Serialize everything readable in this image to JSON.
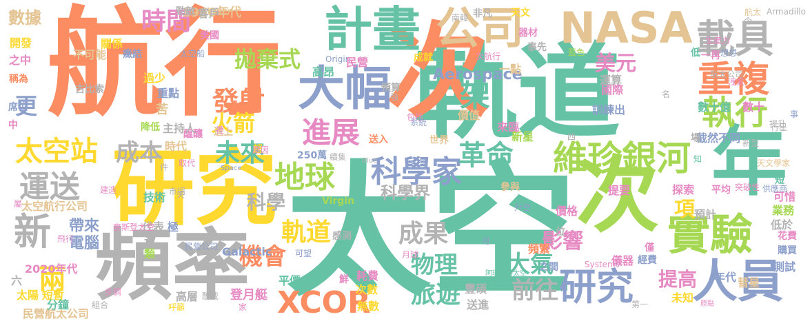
{
  "palette": {
    "orange": "#fc8d62",
    "teal": "#66c2a5",
    "blue": "#8da0cb",
    "pink": "#e78ac3",
    "green": "#a6d854",
    "yellow": "#ffd92f",
    "tan": "#e5c494",
    "gray": "#b3b3b3"
  },
  "words": [
    {
      "text": "太空",
      "color": "teal",
      "size": 1.0
    },
    {
      "text": "航行",
      "color": "orange",
      "size": 0.95
    },
    {
      "text": "軌道",
      "color": "teal",
      "size": 0.85
    },
    {
      "text": "次",
      "color": "orange",
      "size": 0.8
    },
    {
      "text": "研究",
      "color": "yellow",
      "size": 0.7
    },
    {
      "text": "頻率",
      "color": "gray",
      "size": 0.65
    },
    {
      "text": "年",
      "color": "teal",
      "size": 0.6
    },
    {
      "text": "次",
      "color": "green",
      "size": 0.6
    },
    {
      "text": "計畫",
      "color": "teal",
      "size": 0.45
    },
    {
      "text": "公司",
      "color": "tan",
      "size": 0.42
    },
    {
      "text": "NASA",
      "color": "tan",
      "size": 0.4
    },
    {
      "text": "載具",
      "color": "gray",
      "size": 0.38
    },
    {
      "text": "大幅",
      "color": "blue",
      "size": 0.42
    },
    {
      "text": "重複",
      "color": "orange",
      "size": 0.34
    },
    {
      "text": "執行",
      "color": "green",
      "size": 0.34
    },
    {
      "text": "實驗",
      "color": "green",
      "size": 0.38
    },
    {
      "text": "人員",
      "color": "blue",
      "size": 0.4
    },
    {
      "text": "研究",
      "color": "blue",
      "size": 0.36
    },
    {
      "text": "維珍銀河",
      "color": "green",
      "size": 0.36
    },
    {
      "text": "科學家",
      "color": "blue",
      "size": 0.3
    },
    {
      "text": "XCOR",
      "color": "orange",
      "size": 0.3
    },
    {
      "text": "新",
      "color": "gray",
      "size": 0.34
    },
    {
      "text": "太空站",
      "color": "yellow",
      "size": 0.3
    },
    {
      "text": "運送",
      "color": "gray",
      "size": 0.3
    },
    {
      "text": "時間",
      "color": "pink",
      "size": 0.26
    },
    {
      "text": "拋棄式",
      "color": "green",
      "size": 0.24
    },
    {
      "text": "發射",
      "color": "orange",
      "size": 0.28
    },
    {
      "text": "火箭",
      "color": "yellow",
      "size": 0.24
    },
    {
      "text": "進展",
      "color": "pink",
      "size": 0.3
    },
    {
      "text": "地球",
      "color": "green",
      "size": 0.3
    },
    {
      "text": "未來",
      "color": "teal",
      "size": 0.28
    },
    {
      "text": "成本",
      "color": "gray",
      "size": 0.26
    },
    {
      "text": "革命",
      "color": "teal",
      "size": 0.28
    },
    {
      "text": "架",
      "color": "teal",
      "size": 0.32
    },
    {
      "text": "美元",
      "color": "pink",
      "size": 0.22
    },
    {
      "text": "成果",
      "color": "gray",
      "size": 0.26
    },
    {
      "text": "軌道",
      "color": "yellow",
      "size": 0.26
    },
    {
      "text": "機會",
      "color": "orange",
      "size": 0.24
    },
    {
      "text": "物理",
      "color": "teal",
      "size": 0.24
    },
    {
      "text": "大氣",
      "color": "teal",
      "size": 0.24
    },
    {
      "text": "旅遊",
      "color": "teal",
      "size": 0.26
    },
    {
      "text": "前往",
      "color": "gray",
      "size": 0.24
    },
    {
      "text": "影響",
      "color": "pink",
      "size": 0.22
    },
    {
      "text": "提高",
      "color": "pink",
      "size": 0.22
    },
    {
      "text": "項",
      "color": "yellow",
      "size": 0.24
    },
    {
      "text": "兩",
      "color": "yellow",
      "size": 0.28
    },
    {
      "text": "科學",
      "color": "gray",
      "size": 0.22
    },
    {
      "text": "科學界",
      "color": "gray",
      "size": 0.2
    },
    {
      "text": "Aerospace",
      "color": "blue",
      "size": 0.16
    },
    {
      "text": "數據",
      "color": "tan",
      "size": 0.2
    },
    {
      "text": "更",
      "color": "blue",
      "size": 0.22
    },
    {
      "text": "帶來",
      "color": "blue",
      "size": 0.17
    },
    {
      "text": "電腦",
      "color": "blue",
      "size": 0.16
    },
    {
      "text": "1960年代",
      "color": "tan",
      "size": 0.14
    },
    {
      "text": "2020年代",
      "color": "pink",
      "size": 0.12
    },
    {
      "text": "太空航行公司",
      "color": "tan",
      "size": 0.12
    },
    {
      "text": "民營航太公司",
      "color": "tan",
      "size": 0.12
    },
    {
      "text": "Galactic",
      "color": "blue",
      "size": 0.12
    },
    {
      "text": "Virgin",
      "color": "green",
      "size": 0.12
    },
    {
      "text": "Systems",
      "color": "pink",
      "size": 0.09
    },
    {
      "text": "Masten",
      "color": "tan",
      "size": 0.09
    },
    {
      "text": "Armadillo",
      "color": "gray",
      "size": 0.08
    },
    {
      "text": "Origin",
      "color": "blue",
      "size": 0.08
    },
    {
      "text": "Blue",
      "color": "gray",
      "size": 0.07
    },
    {
      "text": "Space",
      "color": "blue",
      "size": 0.07
    },
    {
      "text": "250萬",
      "color": "blue",
      "size": 0.11
    },
    {
      "text": "數十億",
      "color": "teal",
      "size": 0.13
    },
    {
      "text": "數十",
      "color": "pink",
      "size": 0.13
    },
    {
      "text": "截然不同",
      "color": "blue",
      "size": 0.13
    },
    {
      "text": "訓練出",
      "color": "blue",
      "size": 0.13
    },
    {
      "text": "國際",
      "color": "pink",
      "size": 0.13
    },
    {
      "text": "來臨",
      "color": "pink",
      "size": 0.13
    },
    {
      "text": "新星",
      "color": "green",
      "size": 0.12
    },
    {
      "text": "價值",
      "color": "tan",
      "size": 0.12
    },
    {
      "text": "高昂",
      "color": "teal",
      "size": 0.13
    },
    {
      "text": "民營",
      "color": "pink",
      "size": 0.12
    },
    {
      "text": "一點",
      "color": "tan",
      "size": 0.12
    },
    {
      "text": "成就",
      "color": "yellow",
      "size": 0.11
    },
    {
      "text": "非凡",
      "color": "gray",
      "size": 0.11
    },
    {
      "text": "天文",
      "color": "yellow",
      "size": 0.11
    },
    {
      "text": "器材",
      "color": "pink",
      "size": 0.11
    },
    {
      "text": "事先",
      "color": "gray",
      "size": 0.11
    },
    {
      "text": "航太",
      "color": "tan",
      "size": 0.09
    },
    {
      "text": "一再",
      "color": "pink",
      "size": 0.1
    },
    {
      "text": "低",
      "color": "teal",
      "size": 0.1
    },
    {
      "text": "場",
      "color": "gray",
      "size": 0.1
    },
    {
      "text": "事",
      "color": "blue",
      "size": 0.08
    },
    {
      "text": "行星",
      "color": "gray",
      "size": 0.09
    },
    {
      "text": "提升",
      "color": "gray",
      "size": 0.13
    },
    {
      "text": "天文學家",
      "color": "tan",
      "size": 0.08
    },
    {
      "text": "短",
      "color": "teal",
      "size": 0.1
    },
    {
      "text": "可惜",
      "color": "pink",
      "size": 0.11
    },
    {
      "text": "業務",
      "color": "green",
      "size": 0.11
    },
    {
      "text": "低於",
      "color": "gray",
      "size": 0.11
    },
    {
      "text": "花費",
      "color": "pink",
      "size": 0.1
    },
    {
      "text": "購買",
      "color": "blue",
      "size": 0.1
    },
    {
      "text": "測試",
      "color": "blue",
      "size": 0.11
    },
    {
      "text": "彗星",
      "color": "tan",
      "size": 0.1
    },
    {
      "text": "年代",
      "color": "blue",
      "size": 0.1
    },
    {
      "text": "未知",
      "color": "yellow",
      "size": 0.11
    },
    {
      "text": "原點",
      "color": "pink",
      "size": 0.07
    },
    {
      "text": "頻繁",
      "color": "orange",
      "size": 0.11
    },
    {
      "text": "之間",
      "color": "blue",
      "size": 0.1
    },
    {
      "text": "儀器",
      "color": "pink",
      "size": 0.11
    },
    {
      "text": "經費",
      "color": "blue",
      "size": 0.1
    },
    {
      "text": "第一",
      "color": "gray",
      "size": 0.07
    },
    {
      "text": "僅",
      "color": "pink",
      "size": 0.1
    },
    {
      "text": "提要",
      "color": "pink",
      "size": 0.11
    },
    {
      "text": "平均",
      "color": "pink",
      "size": 0.1
    },
    {
      "text": "探索",
      "color": "pink",
      "size": 0.11
    },
    {
      "text": "預計",
      "color": "gray",
      "size": 0.11
    },
    {
      "text": "價格",
      "color": "pink",
      "size": 0.11
    },
    {
      "text": "位",
      "color": "gray",
      "size": 0.1
    },
    {
      "text": "升空",
      "color": "blue",
      "size": 0.08
    },
    {
      "text": "參與",
      "color": "tan",
      "size": 0.1
    },
    {
      "text": "感測",
      "color": "gray",
      "size": 0.1
    },
    {
      "text": "世界",
      "color": "tan",
      "size": 0.1
    },
    {
      "text": "月球",
      "color": "pink",
      "size": 0.1
    },
    {
      "text": "月",
      "color": "blue",
      "size": 0.1
    },
    {
      "text": "阿瑪迪洛太空",
      "color": "teal",
      "size": 0.07
    },
    {
      "text": "登月艇",
      "color": "pink",
      "size": 0.11
    },
    {
      "text": "次數",
      "color": "yellow",
      "size": 0.11
    },
    {
      "text": "無數",
      "color": "yellow",
      "size": 0.11
    },
    {
      "text": "豐碩",
      "color": "gray",
      "size": 0.11
    },
    {
      "text": "送進",
      "color": "gray",
      "size": 0.11
    },
    {
      "text": "耗費",
      "color": "pink",
      "size": 0.11
    },
    {
      "text": "鮮",
      "color": "pink",
      "size": 0.11
    },
    {
      "text": "平價",
      "color": "teal",
      "size": 0.1
    },
    {
      "text": "送入",
      "color": "orange",
      "size": 0.11
    },
    {
      "text": "預算",
      "color": "gray",
      "size": 0.08
    },
    {
      "text": "包括",
      "color": "pink",
      "size": 0.09
    },
    {
      "text": "系統",
      "color": "blue",
      "size": 0.07
    },
    {
      "text": "勁敵",
      "color": "gray",
      "size": 0.06
    },
    {
      "text": "過少",
      "color": "yellow",
      "size": 0.11
    },
    {
      "text": "重點",
      "color": "blue",
      "size": 0.11
    },
    {
      "text": "苦",
      "color": "tan",
      "size": 0.1
    },
    {
      "text": "醞釀",
      "color": "pink",
      "size": 0.11
    },
    {
      "text": "主持人",
      "color": "gray",
      "size": 0.1
    },
    {
      "text": "時代",
      "color": "tan",
      "size": 0.1
    },
    {
      "text": "技術",
      "color": "teal",
      "size": 0.11
    },
    {
      "text": "代表",
      "color": "gray",
      "size": 0.11
    },
    {
      "text": "極",
      "color": "blue",
      "size": 0.1
    },
    {
      "text": "近",
      "color": "gray",
      "size": 0.1
    },
    {
      "text": "類",
      "color": "green",
      "size": 0.11
    },
    {
      "text": "六",
      "color": "gray",
      "size": 0.11
    },
    {
      "text": "短暫",
      "color": "yellow",
      "size": 0.11
    },
    {
      "text": "分鐘",
      "color": "teal",
      "size": 0.11
    },
    {
      "text": "太陽",
      "color": "yellow",
      "size": 0.11
    },
    {
      "text": "高層",
      "color": "gray",
      "size": 0.1
    },
    {
      "text": "送上",
      "color": "tan",
      "size": 0.11
    },
    {
      "text": "超",
      "color": "yellow",
      "size": 0.1
    },
    {
      "text": "原因",
      "color": "pink",
      "size": 0.09
    },
    {
      "text": "降低",
      "color": "green",
      "size": 0.07
    },
    {
      "text": "中",
      "color": "pink",
      "size": 0.08
    },
    {
      "text": "席位",
      "color": "blue",
      "size": 0.1
    },
    {
      "text": "稱為",
      "color": "orange",
      "size": 0.1
    },
    {
      "text": "之中",
      "color": "pink",
      "size": 0.09
    },
    {
      "text": "開發",
      "color": "yellow",
      "size": 0.1
    },
    {
      "text": "關係",
      "color": "yellow",
      "size": 0.1
    },
    {
      "text": "客戶",
      "color": "gray",
      "size": 0.1
    },
    {
      "text": "不可能",
      "color": "tan",
      "size": 0.08
    },
    {
      "text": "癥結",
      "color": "blue",
      "size": 0.09
    },
    {
      "text": "太空船",
      "color": "blue",
      "size": 0.1
    },
    {
      "text": "美國",
      "color": "pink",
      "size": 0.09
    },
    {
      "text": "建造",
      "color": "pink",
      "size": 0.06
    },
    {
      "text": "屬",
      "color": "pink",
      "size": 0.09
    },
    {
      "text": "市場",
      "color": "gray",
      "size": 0.07
    },
    {
      "text": "件",
      "color": "gray",
      "size": 0.07
    },
    {
      "text": "取代",
      "color": "pink",
      "size": 0.07
    },
    {
      "text": "民營公司",
      "color": "blue",
      "size": 0.07
    },
    {
      "text": "可望",
      "color": "blue",
      "size": 0.06
    },
    {
      "text": "麥斯登太空",
      "color": "pink",
      "size": 0.06
    },
    {
      "text": "呼籲",
      "color": "yellow",
      "size": 0.08
    },
    {
      "text": "家",
      "color": "pink",
      "size": 0.07
    },
    {
      "text": "組合",
      "color": "gray",
      "size": 0.06
    },
    {
      "text": "航太公司",
      "color": "gray",
      "size": 0.06
    },
    {
      "text": "名",
      "color": "gray",
      "size": 0.06
    },
    {
      "text": "新型",
      "color": "gray",
      "size": 0.06
    },
    {
      "text": "供應商",
      "color": "blue",
      "size": 0.06
    },
    {
      "text": "突破性",
      "color": "pink",
      "size": 0.06
    },
    {
      "text": "次航行",
      "color": "pink",
      "size": 0.06
    },
    {
      "text": "藍色",
      "color": "green",
      "size": 0.06
    },
    {
      "text": "生產力",
      "color": "pink",
      "size": 0.06
    },
    {
      "text": "運算",
      "color": "gray",
      "size": 0.06
    },
    {
      "text": "令",
      "color": "gray",
      "size": 0.06
    },
    {
      "text": "洩氣",
      "color": "pink",
      "size": 0.08
    },
    {
      "text": "想想",
      "color": "blue",
      "size": 0.06
    },
    {
      "text": "南韓",
      "color": "gray",
      "size": 0.06
    },
    {
      "text": "強",
      "color": "gray",
      "size": 0.06
    },
    {
      "text": "裡",
      "color": "pink",
      "size": 0.06
    },
    {
      "text": "續集",
      "color": "gray",
      "size": 0.06
    },
    {
      "text": "步調",
      "color": "pink",
      "size": 0.06
    },
    {
      "text": "飛行",
      "color": "pink",
      "size": 0.06
    },
    {
      "text": "天",
      "color": "gray",
      "size": 0.06
    },
    {
      "text": "古比索",
      "color": "gray",
      "size": 0.05
    },
    {
      "text": "四",
      "color": "gray",
      "size": 0.06
    },
    {
      "text": "知",
      "color": "teal",
      "size": 0.08
    },
    {
      "text": "醜載",
      "color": "gray",
      "size": 0.05
    },
    {
      "text": "提供",
      "color": "pink",
      "size": 0.06
    },
    {
      "text": "粗略",
      "color": "gray",
      "size": 0.06
    }
  ]
}
